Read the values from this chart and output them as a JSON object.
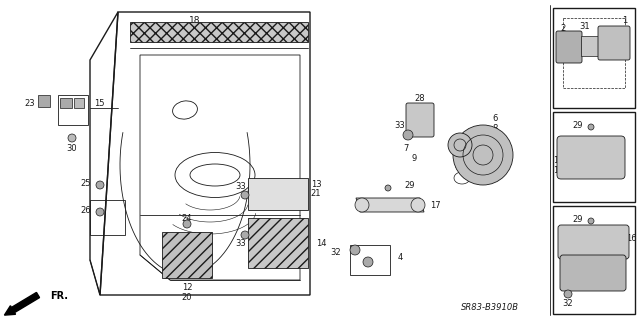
{
  "bg_color": "#ffffff",
  "line_color": "#1a1a1a",
  "diagram_code": "SR83-B3910B",
  "figsize": [
    6.4,
    3.2
  ],
  "dpi": 100
}
